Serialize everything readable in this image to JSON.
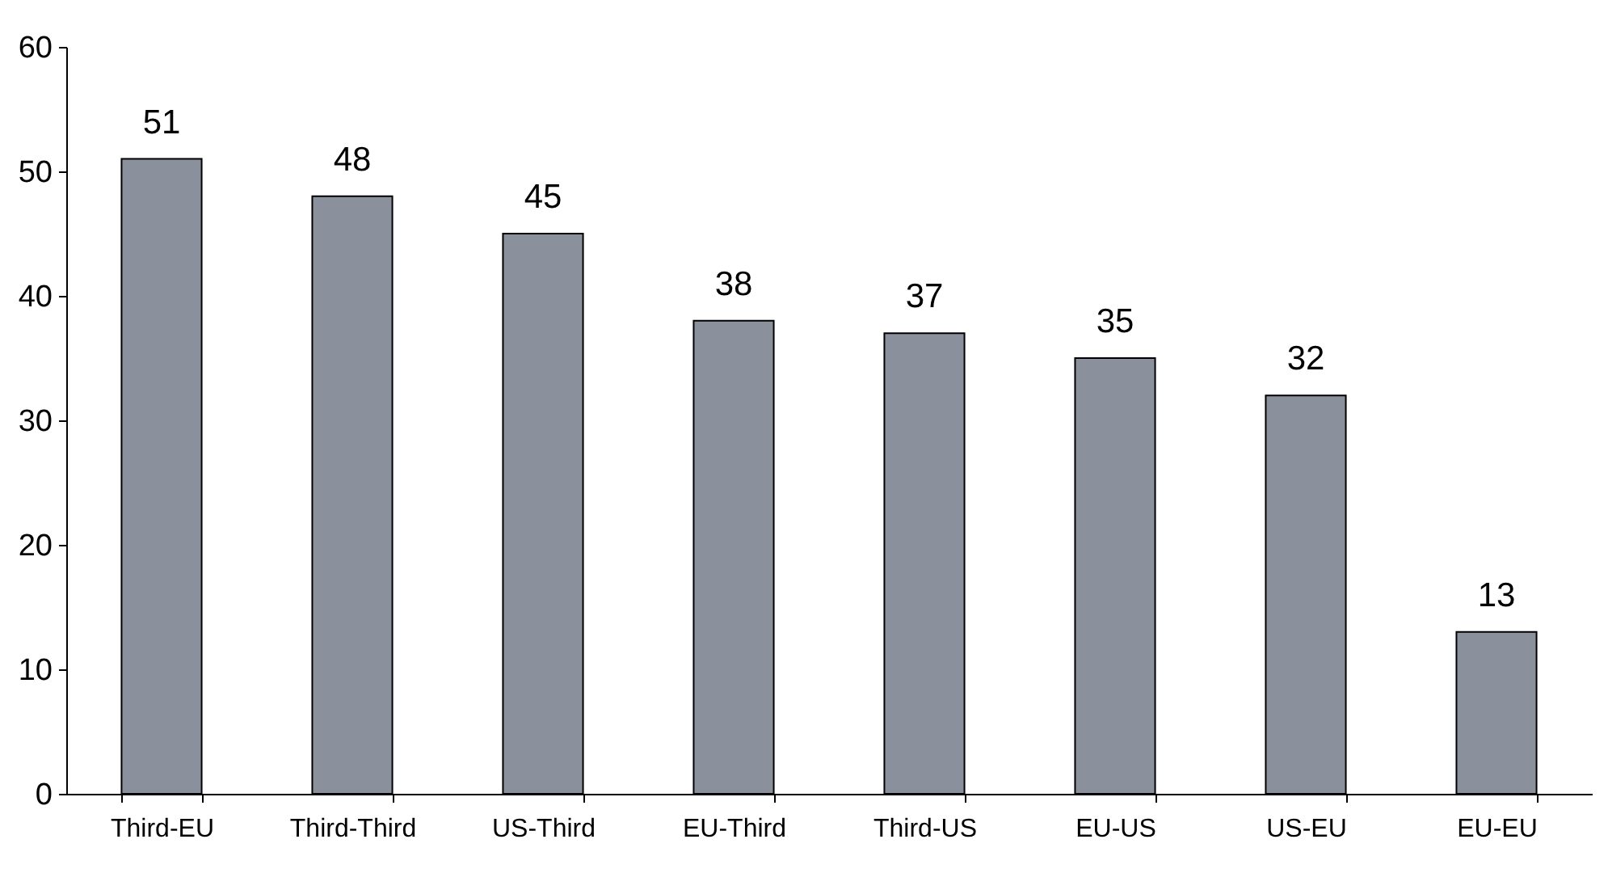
{
  "chart_data": {
    "type": "bar",
    "categories": [
      "Third-EU",
      "Third-Third",
      "US-Third",
      "EU-Third",
      "Third-US",
      "EU-US",
      "US-EU",
      "EU-EU"
    ],
    "values": [
      51,
      48,
      45,
      38,
      37,
      35,
      32,
      13
    ],
    "color": "#8a919d",
    "data_labels": true,
    "ylim": [
      0,
      60
    ],
    "yticks": [
      0,
      10,
      20,
      30,
      40,
      50,
      60
    ],
    "grid": false
  }
}
